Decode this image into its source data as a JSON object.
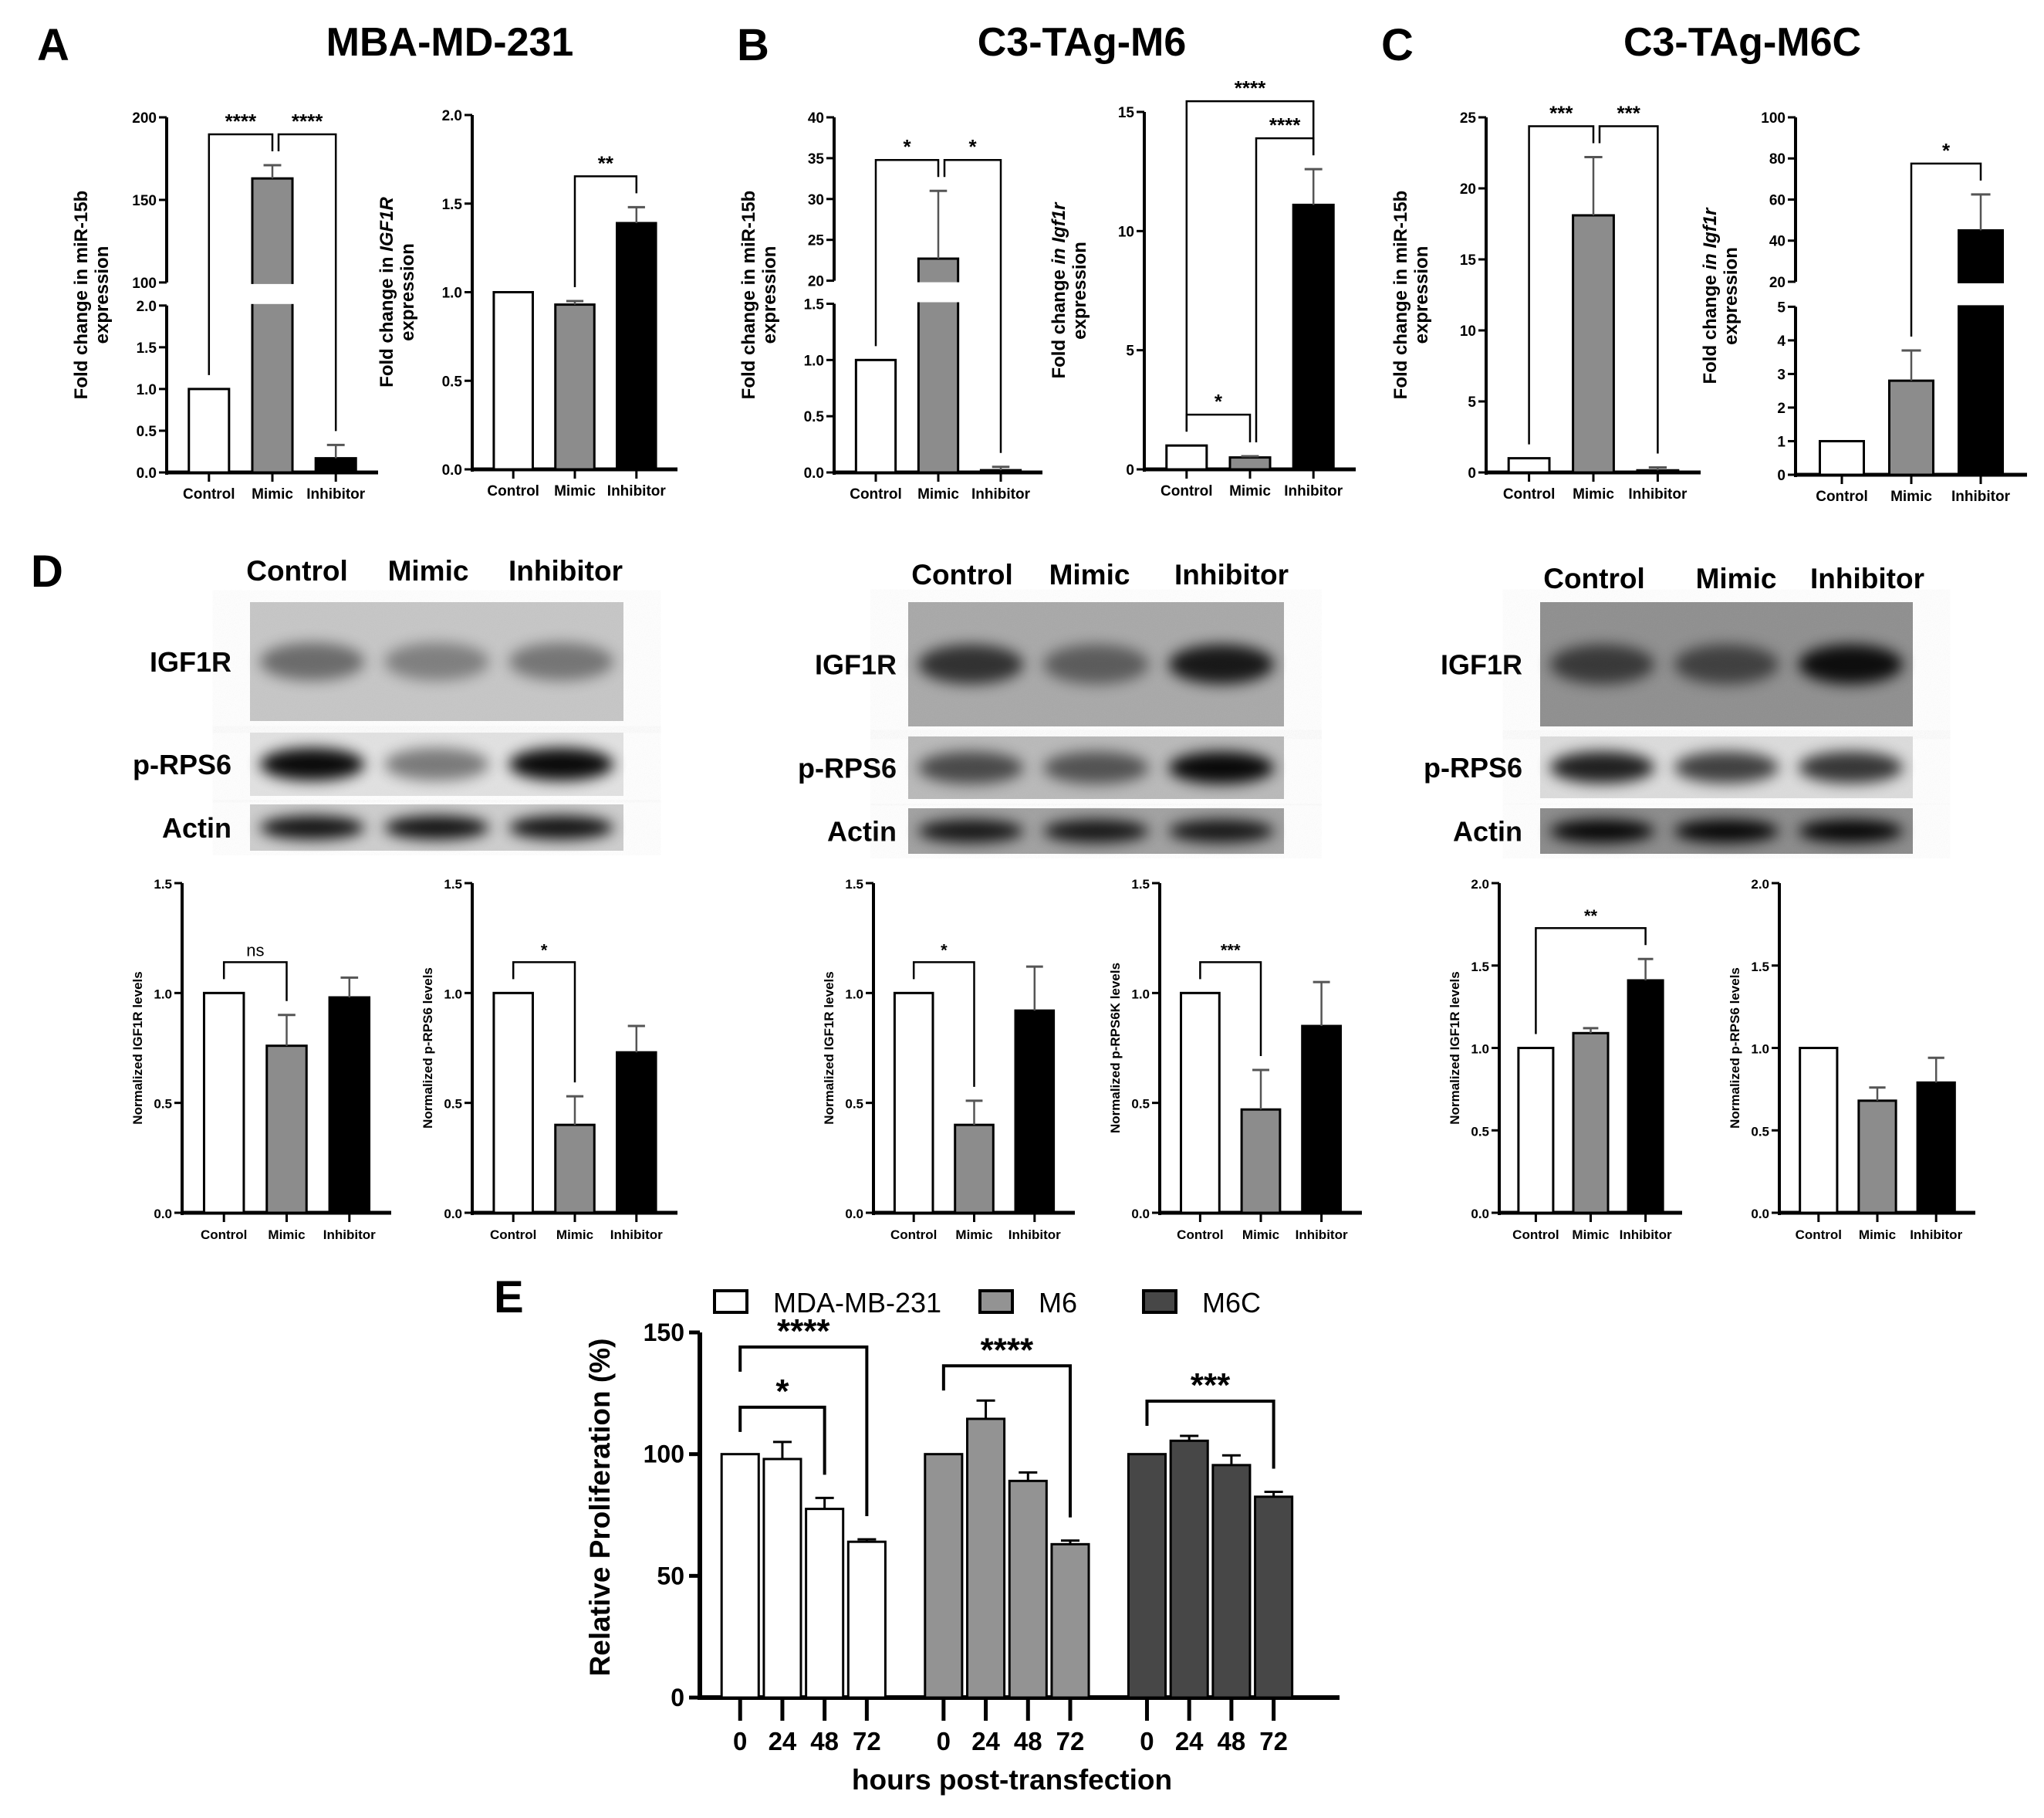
{
  "panels": {
    "A": {
      "letter": "A",
      "title": "MBA-MD-231"
    },
    "B": {
      "letter": "B",
      "title": "C3-TAg-M6"
    },
    "C": {
      "letter": "C",
      "title": "C3-TAg-M6C"
    },
    "D": {
      "letter": "D"
    },
    "E": {
      "letter": "E"
    }
  },
  "blots": [
    {
      "lanes": [
        "Control",
        "Mimic",
        "Inhibitor"
      ],
      "rows": [
        {
          "label": "IGF1R",
          "bg": "#c6c6c6",
          "intensity": [
            0.45,
            0.35,
            0.4
          ]
        },
        {
          "label": "p-RPS6",
          "bg": "#e2e2e2",
          "intensity": [
            0.95,
            0.45,
            0.95
          ]
        },
        {
          "label": "Actin",
          "bg": "#cdcdcd",
          "intensity": [
            0.9,
            0.9,
            0.9
          ]
        }
      ]
    },
    {
      "lanes": [
        "Control",
        "Mimic",
        "Inhibitor"
      ],
      "rows": [
        {
          "label": "IGF1R",
          "bg": "#a8a8a8",
          "intensity": [
            0.7,
            0.45,
            0.85
          ]
        },
        {
          "label": "p-RPS6",
          "bg": "#b9b9b9",
          "intensity": [
            0.6,
            0.55,
            0.95
          ]
        },
        {
          "label": "Actin",
          "bg": "#a0a0a0",
          "intensity": [
            0.85,
            0.85,
            0.85
          ]
        }
      ]
    },
    {
      "lanes": [
        "Control",
        "Mimic",
        "Inhibitor"
      ],
      "rows": [
        {
          "label": "IGF1R",
          "bg": "#8e8e8e",
          "intensity": [
            0.6,
            0.55,
            0.9
          ]
        },
        {
          "label": "p-RPS6",
          "bg": "#dcdcdc",
          "intensity": [
            0.85,
            0.7,
            0.75
          ]
        },
        {
          "label": "Actin",
          "bg": "#8a8a8a",
          "intensity": [
            0.95,
            0.95,
            0.95
          ]
        }
      ]
    }
  ],
  "chart_data": [
    {
      "type": "bar",
      "panel": "A",
      "categories": [
        "Control",
        "Mimic",
        "Inhibitor"
      ],
      "values": [
        1.0,
        163,
        0.17
      ],
      "error_top": [
        1.0,
        171,
        0.33
      ],
      "colors": [
        "#ffffff",
        "#8c8c8c",
        "#000000"
      ],
      "ylabel": [
        [
          {
            "text": "Fold change in miR-15b"
          }
        ],
        [
          {
            "text": "expression"
          }
        ]
      ],
      "y_axis": {
        "broken": true,
        "segments": [
          {
            "range": [
              0,
              2.0
            ],
            "ticks": [
              "0.0",
              "0.5",
              "1.0",
              "1.5",
              "2.0"
            ]
          },
          {
            "range": [
              100,
              200
            ],
            "ticks": [
              "100",
              "150",
              "200"
            ]
          }
        ]
      },
      "brackets": [
        {
          "from": 0,
          "to": 1,
          "label": "****"
        },
        {
          "from": 1,
          "to": 2,
          "label": "****"
        }
      ]
    },
    {
      "type": "bar",
      "panel": "A",
      "categories": [
        "Control",
        "Mimic",
        "Inhibitor"
      ],
      "values": [
        1.0,
        0.93,
        1.39
      ],
      "error_top": [
        1.0,
        0.95,
        1.48
      ],
      "colors": [
        "#ffffff",
        "#8c8c8c",
        "#000000"
      ],
      "ylabel": [
        [
          {
            "text": "Fold change in "
          },
          {
            "text": "IGF1R",
            "italic": true
          }
        ],
        [
          {
            "text": "expression"
          }
        ]
      ],
      "y_axis": {
        "segments": [
          {
            "range": [
              0,
              2.0
            ],
            "ticks": [
              "0.0",
              "0.5",
              "1.0",
              "1.5",
              "2.0"
            ]
          }
        ]
      },
      "brackets": [
        {
          "from": 1,
          "to": 2,
          "label": "**"
        }
      ]
    },
    {
      "type": "bar",
      "panel": "B",
      "categories": [
        "Control",
        "Mimic",
        "Inhibitor"
      ],
      "values": [
        1.0,
        22.7,
        0.02
      ],
      "error_top": [
        1.0,
        31,
        0.05
      ],
      "colors": [
        "#ffffff",
        "#8c8c8c",
        "#000000"
      ],
      "ylabel": [
        [
          {
            "text": "Fold change in miR-15b"
          }
        ],
        [
          {
            "text": "expression"
          }
        ]
      ],
      "y_axis": {
        "broken": true,
        "segments": [
          {
            "range": [
              0,
              1.5
            ],
            "ticks": [
              "0.0",
              "0.5",
              "1.0",
              "1.5"
            ]
          },
          {
            "range": [
              20,
              40
            ],
            "ticks": [
              "20",
              "25",
              "30",
              "35",
              "40"
            ]
          }
        ]
      },
      "brackets": [
        {
          "from": 0,
          "to": 1,
          "label": "*"
        },
        {
          "from": 1,
          "to": 2,
          "label": "*"
        }
      ]
    },
    {
      "type": "bar",
      "panel": "B",
      "categories": [
        "Control",
        "Mimic",
        "Inhibitor"
      ],
      "values": [
        1.0,
        0.5,
        11.1
      ],
      "error_top": [
        1.0,
        0.55,
        12.6
      ],
      "colors": [
        "#ffffff",
        "#8c8c8c",
        "#000000"
      ],
      "ylabel": [
        [
          {
            "text": "Fold change "
          },
          {
            "text": "in Igf1r",
            "italic": true
          }
        ],
        [
          {
            "text": "expression"
          }
        ]
      ],
      "y_axis": {
        "segments": [
          {
            "range": [
              0,
              15
            ],
            "ticks": [
              "0",
              "5",
              "10",
              "15"
            ]
          }
        ]
      },
      "brackets": [
        {
          "from": 0,
          "to": 1,
          "label": "*"
        },
        {
          "from": 1,
          "to": 2,
          "label": "****"
        },
        {
          "from": 0,
          "to": 2,
          "label": "****"
        }
      ]
    },
    {
      "type": "bar",
      "panel": "C",
      "categories": [
        "Control",
        "Mimic",
        "Inhibitor"
      ],
      "values": [
        1.0,
        18.1,
        0.15
      ],
      "error_top": [
        1.0,
        22.2,
        0.35
      ],
      "colors": [
        "#ffffff",
        "#8c8c8c",
        "#000000"
      ],
      "ylabel": [
        [
          {
            "text": "Fold change in miR-15b"
          }
        ],
        [
          {
            "text": "expression"
          }
        ]
      ],
      "y_axis": {
        "segments": [
          {
            "range": [
              0,
              25
            ],
            "ticks": [
              "0",
              "5",
              "10",
              "15",
              "20",
              "25"
            ]
          }
        ]
      },
      "brackets": [
        {
          "from": 0,
          "to": 1,
          "label": "***"
        },
        {
          "from": 1,
          "to": 2,
          "label": "***"
        }
      ]
    },
    {
      "type": "bar",
      "panel": "C",
      "categories": [
        "Control",
        "Mimic",
        "Inhibitor"
      ],
      "values": [
        1.0,
        2.8,
        45
      ],
      "error_top": [
        1.0,
        3.7,
        62.5
      ],
      "colors": [
        "#ffffff",
        "#8c8c8c",
        "#000000"
      ],
      "ylabel": [
        [
          {
            "text": "Fold change "
          },
          {
            "text": "in Igf1r",
            "italic": true
          }
        ],
        [
          {
            "text": "expression"
          }
        ]
      ],
      "y_axis": {
        "broken": true,
        "segments": [
          {
            "range": [
              0,
              5
            ],
            "ticks": [
              "0",
              "1",
              "2",
              "3",
              "4",
              "5"
            ]
          },
          {
            "range": [
              20,
              100
            ],
            "ticks": [
              "20",
              "40",
              "60",
              "80",
              "100"
            ]
          }
        ]
      },
      "brackets": [
        {
          "from": 1,
          "to": 2,
          "label": "*"
        }
      ]
    },
    {
      "type": "bar",
      "panel": "D",
      "categories": [
        "Control",
        "Mimic",
        "Inhibitor"
      ],
      "values": [
        1.0,
        0.76,
        0.98
      ],
      "error_top": [
        1.0,
        0.9,
        1.07
      ],
      "colors": [
        "#ffffff",
        "#8c8c8c",
        "#000000"
      ],
      "ylabel": [
        [
          {
            "text": "Normalized IGF1R levels"
          }
        ]
      ],
      "y_axis": {
        "segments": [
          {
            "range": [
              0,
              1.5
            ],
            "ticks": [
              "0.0",
              "0.5",
              "1.0",
              "1.5"
            ]
          }
        ]
      },
      "brackets": [
        {
          "from": 0,
          "to": 1,
          "label": "ns"
        }
      ]
    },
    {
      "type": "bar",
      "panel": "D",
      "categories": [
        "Control",
        "Mimic",
        "Inhibitor"
      ],
      "values": [
        1.0,
        0.4,
        0.73
      ],
      "error_top": [
        1.0,
        0.53,
        0.85
      ],
      "colors": [
        "#ffffff",
        "#8c8c8c",
        "#000000"
      ],
      "ylabel": [
        [
          {
            "text": "Normalized p-RPS6 levels"
          }
        ]
      ],
      "y_axis": {
        "segments": [
          {
            "range": [
              0,
              1.5
            ],
            "ticks": [
              "0.0",
              "0.5",
              "1.0",
              "1.5"
            ]
          }
        ]
      },
      "brackets": [
        {
          "from": 0,
          "to": 1,
          "label": "*"
        }
      ]
    },
    {
      "type": "bar",
      "panel": "D",
      "categories": [
        "Control",
        "Mimic",
        "Inhibitor"
      ],
      "values": [
        1.0,
        0.4,
        0.92
      ],
      "error_top": [
        1.0,
        0.51,
        1.12
      ],
      "colors": [
        "#ffffff",
        "#8c8c8c",
        "#000000"
      ],
      "ylabel": [
        [
          {
            "text": "Normalized IGF1R levels"
          }
        ]
      ],
      "y_axis": {
        "segments": [
          {
            "range": [
              0,
              1.5
            ],
            "ticks": [
              "0.0",
              "0.5",
              "1.0",
              "1.5"
            ]
          }
        ]
      },
      "brackets": [
        {
          "from": 0,
          "to": 1,
          "label": "*"
        }
      ]
    },
    {
      "type": "bar",
      "panel": "D",
      "categories": [
        "Control",
        "Mimic",
        "Inhibitor"
      ],
      "values": [
        1.0,
        0.47,
        0.85
      ],
      "error_top": [
        1.0,
        0.65,
        1.05
      ],
      "colors": [
        "#ffffff",
        "#8c8c8c",
        "#000000"
      ],
      "ylabel": [
        [
          {
            "text": "Normalized p-RPS6K levels"
          }
        ]
      ],
      "y_axis": {
        "segments": [
          {
            "range": [
              0,
              1.5
            ],
            "ticks": [
              "0.0",
              "0.5",
              "1.0",
              "1.5"
            ]
          }
        ]
      },
      "brackets": [
        {
          "from": 0,
          "to": 1,
          "label": "***"
        }
      ]
    },
    {
      "type": "bar",
      "panel": "D",
      "categories": [
        "Control",
        "Mimic",
        "Inhibitor"
      ],
      "values": [
        1.0,
        1.09,
        1.41
      ],
      "error_top": [
        1.0,
        1.12,
        1.54
      ],
      "colors": [
        "#ffffff",
        "#8c8c8c",
        "#000000"
      ],
      "ylabel": [
        [
          {
            "text": "Normalized IGF1R levels"
          }
        ]
      ],
      "y_axis": {
        "segments": [
          {
            "range": [
              0,
              2.0
            ],
            "ticks": [
              "0.0",
              "0.5",
              "1.0",
              "1.5",
              "2.0"
            ]
          }
        ]
      },
      "brackets": [
        {
          "from": 0,
          "to": 2,
          "label": "**"
        }
      ]
    },
    {
      "type": "bar",
      "panel": "D",
      "categories": [
        "Control",
        "Mimic",
        "Inhibitor"
      ],
      "values": [
        1.0,
        0.68,
        0.79
      ],
      "error_top": [
        1.0,
        0.76,
        0.94
      ],
      "colors": [
        "#ffffff",
        "#8c8c8c",
        "#000000"
      ],
      "ylabel": [
        [
          {
            "text": "Normalized p-RPS6 levels"
          }
        ]
      ],
      "y_axis": {
        "segments": [
          {
            "range": [
              0,
              2.0
            ],
            "ticks": [
              "0.0",
              "0.5",
              "1.0",
              "1.5",
              "2.0"
            ]
          }
        ]
      },
      "brackets": []
    },
    {
      "type": "bar",
      "panel": "E",
      "categories": [
        "0",
        "24",
        "48",
        "72"
      ],
      "xlabel": "hours post-transfection",
      "ylabel": "Relative Proliferation (%)",
      "ylim": [
        0,
        150
      ],
      "yticks": [
        "0",
        "50",
        "100",
        "150"
      ],
      "legend_position": "top",
      "series": [
        {
          "name": "MDA-MB-231",
          "color": "#ffffff",
          "values": [
            100,
            98,
            77.5,
            64
          ],
          "error_top": [
            100,
            105,
            82,
            65
          ]
        },
        {
          "name": "M6",
          "color": "#939393",
          "values": [
            100,
            114.5,
            89,
            63
          ],
          "error_top": [
            100,
            122,
            92.5,
            64.5
          ]
        },
        {
          "name": "M6C",
          "color": "#474747",
          "values": [
            100,
            105.5,
            95.5,
            82.5
          ],
          "error_top": [
            100,
            107.5,
            99.5,
            84.5
          ]
        }
      ],
      "brackets": [
        {
          "series": 0,
          "from": 0,
          "to": 2,
          "label": "*"
        },
        {
          "series": 0,
          "from": 0,
          "to": 3,
          "label": "****"
        },
        {
          "series": 1,
          "from": 0,
          "to": 3,
          "label": "****"
        },
        {
          "series": 2,
          "from": 0,
          "to": 3,
          "label": "***"
        }
      ]
    }
  ]
}
